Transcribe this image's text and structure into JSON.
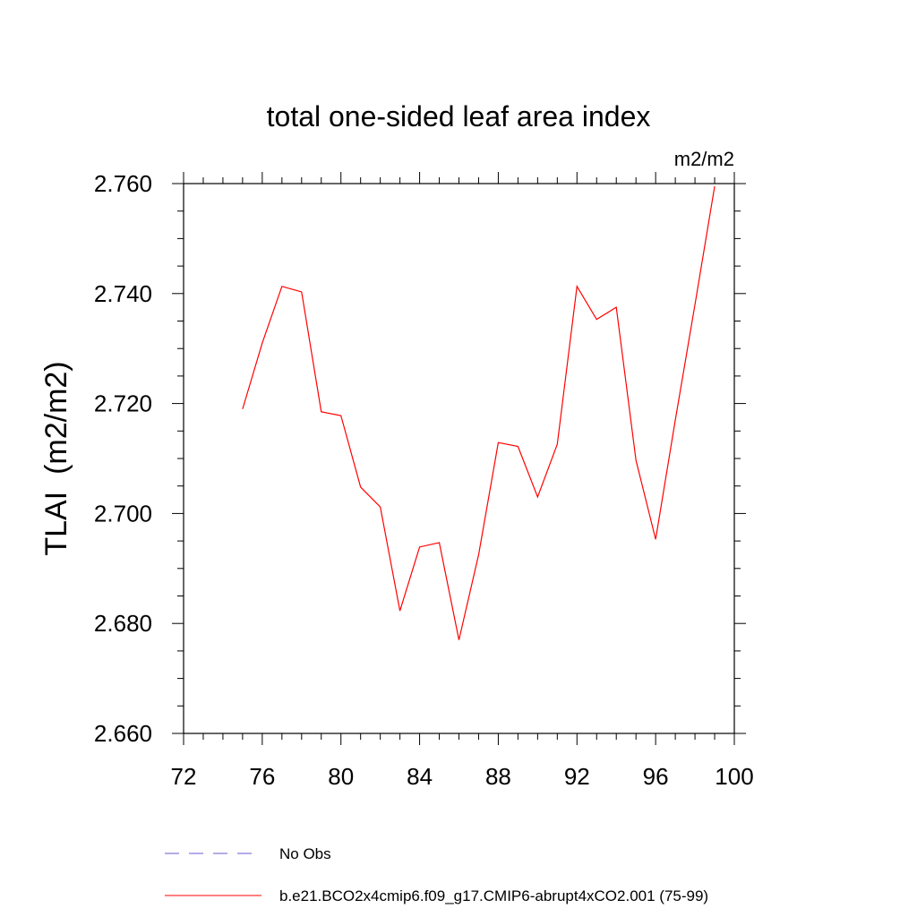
{
  "chart_data": {
    "type": "line",
    "title": "total one-sided leaf area index",
    "units": "m2/m2",
    "ylabel": "TLAI  (m2/m2)",
    "xlabel": "",
    "xlim": [
      72,
      100
    ],
    "ylim": [
      2.66,
      2.76
    ],
    "xticks": [
      72,
      76,
      80,
      84,
      88,
      92,
      96,
      100
    ],
    "yticks": [
      "2.660",
      "2.680",
      "2.700",
      "2.720",
      "2.740",
      "2.760"
    ],
    "grid": false,
    "legend_position": "bottom",
    "series": [
      {
        "name": "No Obs",
        "color": "#6a5acd",
        "style": "dashed",
        "x": [],
        "y": []
      },
      {
        "name": "b.e21.BCO2x4cmip6.f09_g17.CMIP6-abrupt4xCO2.001 (75-99)",
        "color": "#ff0000",
        "style": "solid",
        "x": [
          75,
          76,
          77,
          78,
          79,
          80,
          81,
          82,
          83,
          84,
          85,
          86,
          87,
          88,
          89,
          90,
          91,
          92,
          93,
          94,
          95,
          96,
          97,
          98,
          99
        ],
        "y": [
          2.719,
          2.731,
          2.7413,
          2.7403,
          2.7185,
          2.7178,
          2.7048,
          2.7012,
          2.6823,
          2.6939,
          2.6947,
          2.677,
          2.6925,
          2.7129,
          2.7122,
          2.703,
          2.7126,
          2.7413,
          2.7353,
          2.7375,
          2.7097,
          2.6953,
          2.717,
          2.738,
          2.7595
        ]
      }
    ]
  }
}
